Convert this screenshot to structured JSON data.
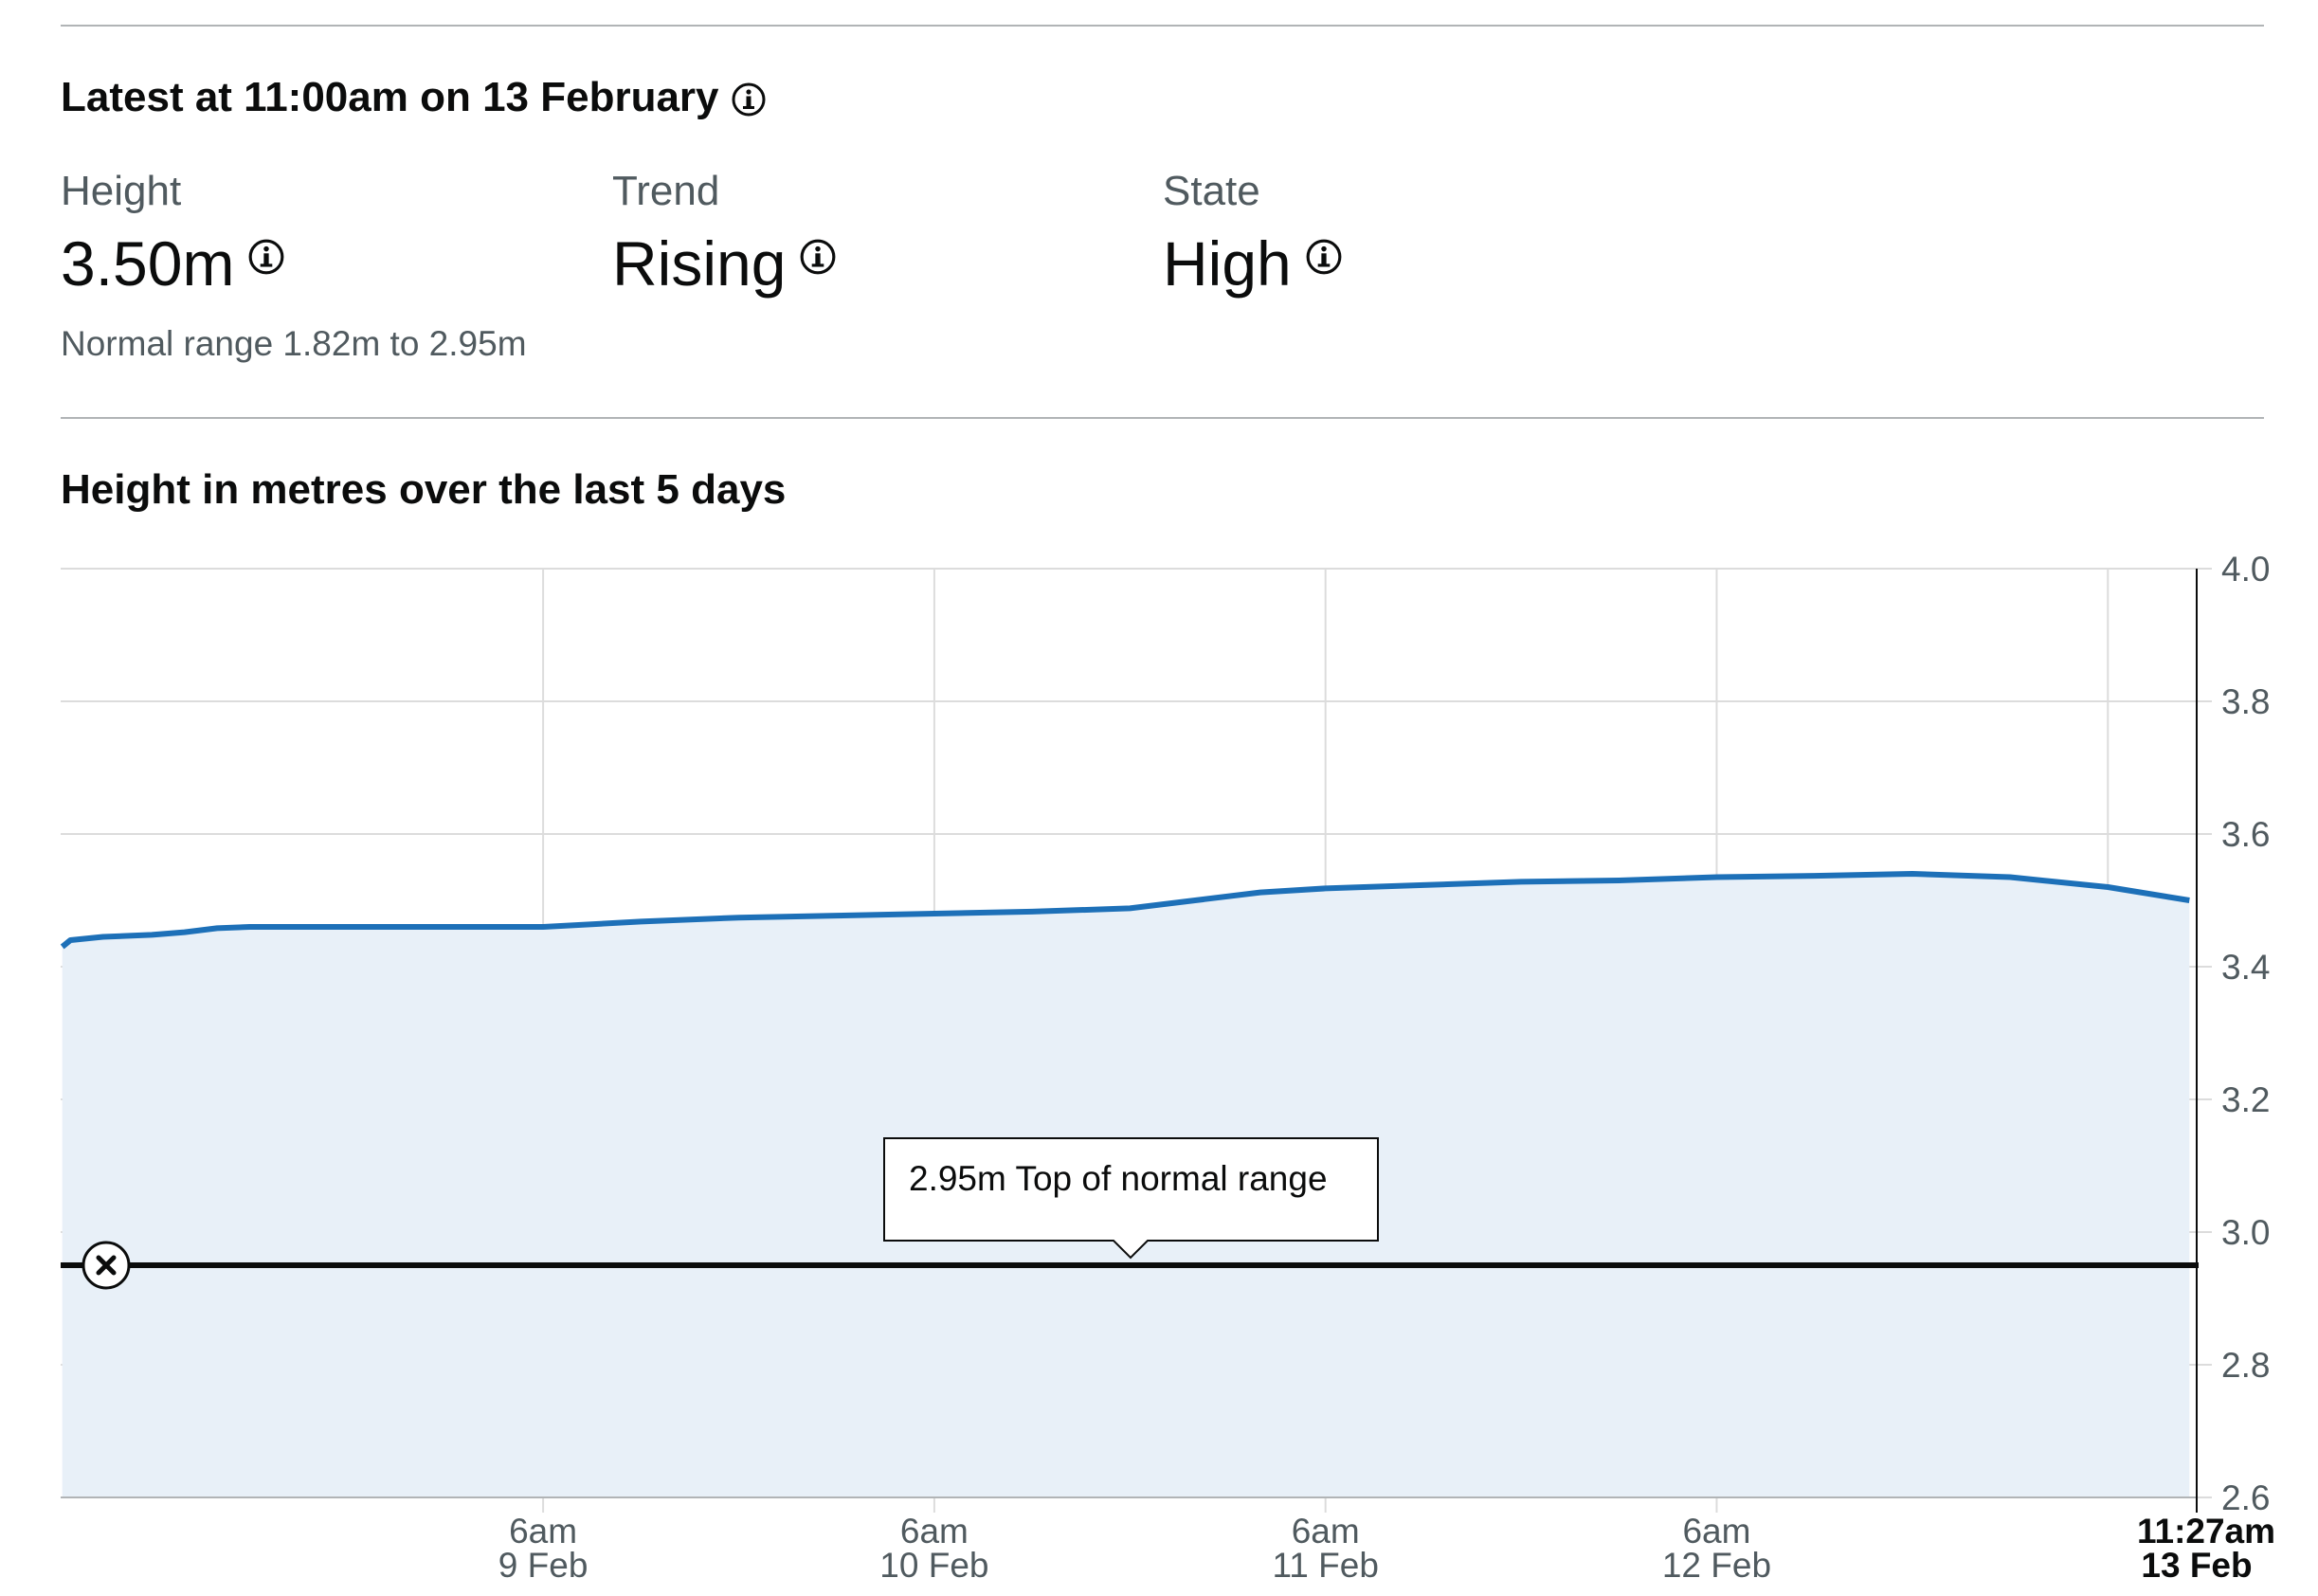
{
  "latest": {
    "heading": "Latest at 11:00am on 13 February",
    "height": {
      "label": "Height",
      "value": "3.50m"
    },
    "trend": {
      "label": "Trend",
      "value": "Rising"
    },
    "state": {
      "label": "State",
      "value": "High"
    },
    "normal_range": "Normal range 1.82m to 2.95m"
  },
  "chart_heading": "Height in metres over the last 5 days",
  "colors": {
    "series": "#1d70b8",
    "fill": "#e8f0f8",
    "grid": "#dcdcdc",
    "threshold": "#0b0c0c",
    "tick_text": "#505a5f"
  },
  "chart_data": {
    "type": "area",
    "title": "Height in metres over the last 5 days",
    "xlabel": "",
    "ylabel": "",
    "ylim": [
      2.6,
      4.0
    ],
    "yticks": [
      "2.6",
      "2.8",
      "3.0",
      "3.2",
      "3.4",
      "3.6",
      "3.8",
      "4.0"
    ],
    "xlim": [
      "2025-02-08T00:24",
      "2025-02-13T11:27"
    ],
    "xticks": [
      {
        "time": "2025-02-09T06:00",
        "line1": "6am",
        "line2": "9 Feb"
      },
      {
        "time": "2025-02-10T06:00",
        "line1": "6am",
        "line2": "10 Feb"
      },
      {
        "time": "2025-02-11T06:00",
        "line1": "6am",
        "line2": "11 Feb"
      },
      {
        "time": "2025-02-12T06:00",
        "line1": "6am",
        "line2": "12 Feb"
      }
    ],
    "extra_gridlines": [
      "2025-02-13T06:00"
    ],
    "now_marker": {
      "time": "2025-02-13T11:27",
      "line1": "11:27am",
      "line2": "13 Feb"
    },
    "grid": true,
    "threshold": {
      "value": 2.95,
      "label": "2.95m Top of normal range"
    },
    "series": [
      {
        "x": [
          "2025-02-08T00:30",
          "2025-02-08T01:00",
          "2025-02-08T03:00",
          "2025-02-08T06:00",
          "2025-02-08T08:00",
          "2025-02-08T10:00",
          "2025-02-08T12:00",
          "2025-02-08T18:00",
          "2025-02-09T00:00",
          "2025-02-09T06:00",
          "2025-02-09T12:00",
          "2025-02-09T18:00",
          "2025-02-10T00:00",
          "2025-02-10T06:00",
          "2025-02-10T12:00",
          "2025-02-10T18:00",
          "2025-02-10T22:00",
          "2025-02-11T02:00",
          "2025-02-11T06:00",
          "2025-02-11T12:00",
          "2025-02-11T18:00",
          "2025-02-12T00:00",
          "2025-02-12T06:00",
          "2025-02-12T12:00",
          "2025-02-12T18:00",
          "2025-02-13T00:00",
          "2025-02-13T06:00",
          "2025-02-13T11:00"
        ],
        "y": [
          3.43,
          3.44,
          3.445,
          3.448,
          3.452,
          3.458,
          3.46,
          3.46,
          3.46,
          3.46,
          3.468,
          3.474,
          3.477,
          3.48,
          3.483,
          3.488,
          3.5,
          3.512,
          3.518,
          3.523,
          3.528,
          3.53,
          3.535,
          3.537,
          3.54,
          3.535,
          3.52,
          3.5
        ]
      }
    ]
  }
}
